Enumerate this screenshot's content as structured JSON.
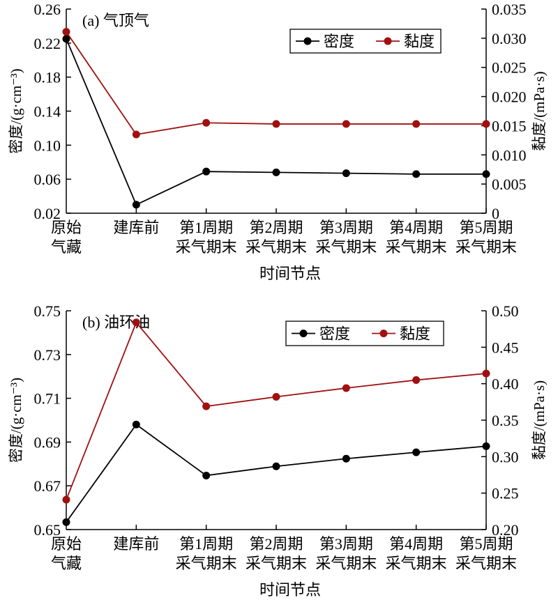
{
  "chart_data": [
    {
      "type": "line",
      "title": "(a) 气顶气",
      "xlabel": "时间节点",
      "ylabel": "密度/(g·cm⁻³)",
      "y2label": "黏度/(mPa·s)",
      "categories": [
        [
          "原始",
          "气藏"
        ],
        [
          "建库前",
          ""
        ],
        [
          "第1周期",
          "采气期末"
        ],
        [
          "第2周期",
          "采气期末"
        ],
        [
          "第3周期",
          "采气期末"
        ],
        [
          "第4周期",
          "采气期末"
        ],
        [
          "第5周期",
          "采气期末"
        ]
      ],
      "ylim": [
        0.02,
        0.26
      ],
      "yticks": [
        "0.02",
        "0.06",
        "0.10",
        "0.14",
        "0.18",
        "0.22",
        "0.26"
      ],
      "y2lim": [
        0,
        0.035
      ],
      "y2ticks": [
        "0",
        "0.005",
        "0.010",
        "0.015",
        "0.020",
        "0.025",
        "0.030",
        "0.035"
      ],
      "legend_position": "top-right",
      "series": [
        {
          "name": "密度",
          "axis": "left",
          "color": "#000000",
          "values": [
            0.225,
            0.03,
            0.069,
            0.068,
            0.067,
            0.066,
            0.066
          ]
        },
        {
          "name": "黏度",
          "axis": "right",
          "color": "#a01010",
          "values": [
            0.0311,
            0.0135,
            0.0155,
            0.0153,
            0.0153,
            0.0153,
            0.0153
          ]
        }
      ]
    },
    {
      "type": "line",
      "title": "(b) 油环油",
      "xlabel": "时间节点",
      "ylabel": "密度/(g·cm⁻³)",
      "y2label": "黏度/(mPa·s)",
      "categories": [
        [
          "原始",
          "气藏"
        ],
        [
          "建库前",
          ""
        ],
        [
          "第1周期",
          "采气期末"
        ],
        [
          "第2周期",
          "采气期末"
        ],
        [
          "第3周期",
          "采气期末"
        ],
        [
          "第4周期",
          "采气期末"
        ],
        [
          "第5周期",
          "采气期末"
        ]
      ],
      "ylim": [
        0.65,
        0.75
      ],
      "yticks": [
        "0.65",
        "0.67",
        "0.69",
        "0.71",
        "0.73",
        "0.75"
      ],
      "y2lim": [
        0.2,
        0.5
      ],
      "y2ticks": [
        "0.20",
        "0.25",
        "0.30",
        "0.35",
        "0.40",
        "0.45",
        "0.50"
      ],
      "legend_position": "top-right",
      "series": [
        {
          "name": "密度",
          "axis": "left",
          "color": "#000000",
          "values": [
            0.6534,
            0.698,
            0.6747,
            0.6789,
            0.6824,
            0.6853,
            0.6881
          ]
        },
        {
          "name": "黏度",
          "axis": "right",
          "color": "#a01010",
          "values": [
            0.241,
            0.484,
            0.369,
            0.382,
            0.394,
            0.405,
            0.414
          ]
        }
      ]
    }
  ]
}
